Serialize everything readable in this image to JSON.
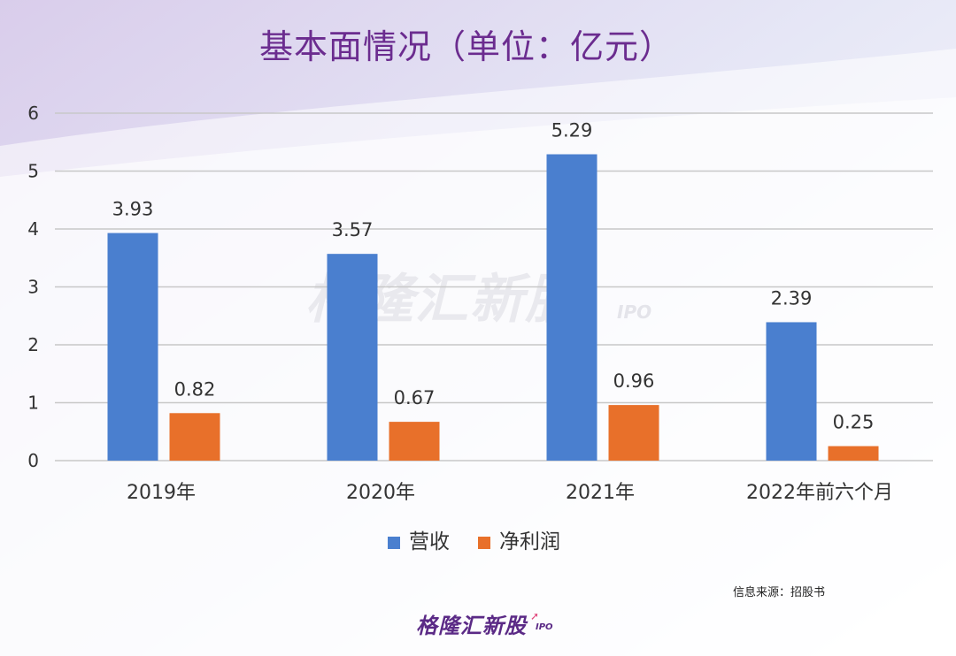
{
  "title": "基本面情况（单位：亿元）",
  "watermark": {
    "text": "格隆汇新股",
    "sub": "IPO"
  },
  "source": "信息来源：招股书",
  "logo": {
    "text": "格隆汇新股",
    "sub": "IPO"
  },
  "colors": {
    "revenue": "#4a7fcf",
    "profit": "#e8702a",
    "title": "#6b2c8f",
    "grid": "#c8c8c8"
  },
  "chart_data": {
    "type": "bar",
    "title": "基本面情况（单位：亿元）",
    "categories": [
      "2019年",
      "2020年",
      "2021年",
      "2022年前六个月"
    ],
    "series": [
      {
        "name": "营收",
        "values": [
          3.93,
          3.57,
          5.29,
          2.39
        ]
      },
      {
        "name": "净利润",
        "values": [
          0.82,
          0.67,
          0.96,
          0.25
        ]
      }
    ],
    "ylim": [
      0,
      6
    ],
    "yticks": [
      0,
      1,
      2,
      3,
      4,
      5,
      6
    ],
    "grid": true,
    "legend": "bottom"
  }
}
